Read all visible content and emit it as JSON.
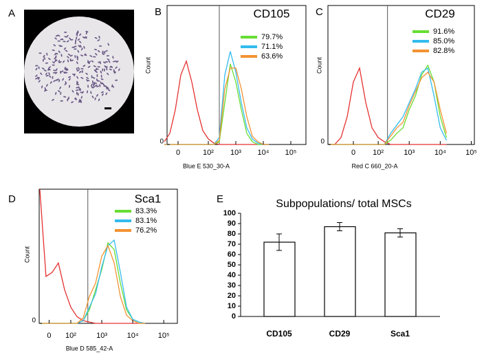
{
  "panel_a": {
    "label": "A"
  },
  "chart_data": [
    {
      "type": "line",
      "panel": "B",
      "title": "CD105",
      "x_label": "Blue E 530_30-A",
      "y_label": "Count",
      "xlim": [
        0.5,
        5.55
      ],
      "ylim": [
        0,
        100
      ],
      "xticks": [
        {
          "value": 0.9,
          "label": "0"
        },
        {
          "value": 2,
          "label": "10²"
        },
        {
          "value": 3,
          "label": "10³"
        },
        {
          "value": 4,
          "label": "10⁴"
        },
        {
          "value": 5,
          "label": "10⁵"
        }
      ],
      "yticks": [
        0
      ],
      "gate": 2.4,
      "x": [
        0.4,
        0.6,
        0.8,
        1.0,
        1.2,
        1.4,
        1.6,
        1.8,
        2.0,
        2.2,
        2.4,
        2.6,
        2.8,
        3.0,
        3.2,
        3.4,
        3.6,
        3.8,
        4.0,
        4.2
      ],
      "series": [
        {
          "color": "#e53030",
          "values": [
            2,
            8,
            25,
            50,
            60,
            45,
            25,
            10,
            4,
            1,
            0,
            0,
            0,
            0,
            0,
            0,
            0,
            0,
            0,
            0
          ]
        },
        {
          "name": "79.7%",
          "color": "#66dd33",
          "values": [
            0,
            0,
            0,
            0,
            0,
            0,
            0,
            0,
            0,
            0,
            2,
            30,
            58,
            45,
            25,
            8,
            2,
            0,
            0,
            0
          ]
        },
        {
          "name": "71.1%",
          "color": "#33bbee",
          "values": [
            0,
            0,
            0,
            0,
            0,
            0,
            0,
            0,
            0,
            0,
            5,
            50,
            67,
            52,
            30,
            12,
            4,
            1,
            0,
            0
          ]
        },
        {
          "name": "63.6%",
          "color": "#f39232",
          "values": [
            0,
            0,
            0,
            0,
            0,
            0,
            0,
            0,
            0,
            0,
            3,
            40,
            55,
            55,
            40,
            20,
            6,
            2,
            0,
            0
          ]
        }
      ]
    },
    {
      "type": "line",
      "panel": "C",
      "title": "CD29",
      "x_label": "Red C 660_20-A",
      "y_label": "Count",
      "xlim": [
        0.38,
        5.1
      ],
      "ylim": [
        0,
        100
      ],
      "xticks": [
        {
          "value": 1.2,
          "label": "0"
        },
        {
          "value": 2,
          "label": "10²"
        },
        {
          "value": 3,
          "label": "10³"
        },
        {
          "value": 4,
          "label": "10⁴"
        },
        {
          "value": 5,
          "label": "10⁵"
        }
      ],
      "yticks": [
        0
      ],
      "gate": 2.3,
      "x": [
        0.4,
        0.6,
        0.8,
        1.0,
        1.2,
        1.4,
        1.6,
        1.8,
        2.0,
        2.2,
        2.4,
        2.6,
        2.8,
        3.0,
        3.2,
        3.4,
        3.6,
        3.8,
        4.0,
        4.2
      ],
      "series": [
        {
          "color": "#e53030",
          "values": [
            0,
            0,
            5,
            20,
            45,
            55,
            30,
            12,
            5,
            2,
            0,
            0,
            0,
            0,
            0,
            0,
            0,
            0,
            0,
            0
          ]
        },
        {
          "name": "91.6%",
          "color": "#66dd33",
          "values": [
            0,
            0,
            0,
            0,
            0,
            0,
            0,
            0,
            0,
            0,
            3,
            8,
            12,
            25,
            35,
            50,
            57,
            45,
            20,
            5
          ]
        },
        {
          "name": "85.0%",
          "color": "#33bbee",
          "values": [
            0,
            0,
            0,
            0,
            0,
            0,
            0,
            0,
            0,
            0,
            8,
            14,
            20,
            30,
            40,
            52,
            55,
            35,
            12,
            3
          ]
        },
        {
          "name": "82.8%",
          "color": "#f39232",
          "values": [
            0,
            0,
            0,
            0,
            0,
            0,
            0,
            0,
            0,
            0,
            6,
            12,
            16,
            28,
            38,
            48,
            52,
            45,
            25,
            8
          ]
        }
      ]
    },
    {
      "type": "line",
      "panel": "D",
      "title": "Sca1",
      "x_label": "Blue D 585_42-A",
      "y_label": "Count",
      "xlim": [
        0.98,
        5.44
      ],
      "ylim": [
        0,
        100
      ],
      "xticks": [
        {
          "value": 1.3,
          "label": "0"
        },
        {
          "value": 2,
          "label": "10²"
        },
        {
          "value": 3,
          "label": "10³"
        },
        {
          "value": 4,
          "label": "10⁴"
        },
        {
          "value": 5,
          "label": "10⁵"
        }
      ],
      "yticks": [
        0
      ],
      "gate": 2.55,
      "x": [
        1.0,
        1.2,
        1.4,
        1.6,
        1.8,
        2.0,
        2.2,
        2.4,
        2.6,
        2.8,
        3.0,
        3.2,
        3.4,
        3.6,
        3.8,
        4.0,
        4.2,
        4.4
      ],
      "series": [
        {
          "color": "#e53030",
          "values": [
            100,
            35,
            38,
            45,
            25,
            12,
            5,
            2,
            1,
            0,
            0,
            0,
            0,
            0,
            0,
            0,
            0,
            0
          ]
        },
        {
          "name": "83.3%",
          "color": "#66dd33",
          "values": [
            0,
            0,
            0,
            0,
            0,
            0,
            0,
            2,
            10,
            25,
            40,
            60,
            55,
            30,
            10,
            3,
            1,
            0
          ]
        },
        {
          "name": "83.1%",
          "color": "#33bbee",
          "values": [
            0,
            0,
            0,
            0,
            0,
            0,
            0,
            2,
            12,
            22,
            42,
            58,
            62,
            38,
            12,
            3,
            1,
            0
          ]
        },
        {
          "name": "76.2%",
          "color": "#f39232",
          "values": [
            0,
            0,
            0,
            0,
            0,
            0,
            0,
            4,
            20,
            30,
            50,
            58,
            45,
            20,
            6,
            2,
            0,
            0
          ]
        }
      ]
    },
    {
      "type": "bar",
      "panel": "E",
      "title": "Subpopulations/ total MSCs",
      "categories": [
        "CD105",
        "CD29",
        "Sca1"
      ],
      "values": [
        72,
        87,
        81
      ],
      "errors": [
        8,
        4,
        4
      ],
      "color": "#ffffff",
      "ylim": [
        0,
        100
      ],
      "yticks": [
        0,
        10,
        20,
        30,
        40,
        50,
        60,
        70,
        80,
        90,
        100
      ]
    }
  ]
}
